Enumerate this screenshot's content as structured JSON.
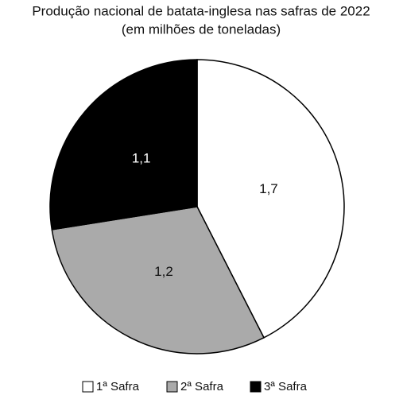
{
  "chart_data": {
    "type": "pie",
    "title": "Produção nacional de batata-inglesa nas safras de 2022",
    "subtitle": "(em milhões de toneladas)",
    "categories": [
      "1ª Safra",
      "2ª Safra",
      "3ª Safra"
    ],
    "values": [
      1.7,
      1.2,
      1.1
    ],
    "value_labels": [
      "1,7",
      "1,2",
      "1,1"
    ],
    "colors": [
      "#ffffff",
      "#aaaaaa",
      "#000000"
    ]
  }
}
